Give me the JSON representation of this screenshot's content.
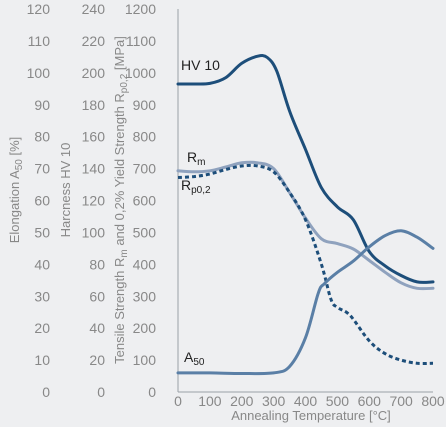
{
  "chart_data": {
    "type": "line",
    "x_title": "Annealing Temperature [°C]",
    "x_ticks": [
      0,
      100,
      200,
      300,
      400,
      500,
      600,
      700,
      800
    ],
    "xlim": [
      0,
      800
    ],
    "axes": [
      {
        "key": "elong",
        "title": "Elongation A50 [%]",
        "title_main": "Elongation A",
        "title_sub": "50",
        "title_tail": " [%]",
        "ticks": [
          0,
          10,
          20,
          30,
          40,
          50,
          60,
          70,
          80,
          90,
          100,
          110,
          120
        ],
        "range": [
          0,
          120
        ]
      },
      {
        "key": "hard",
        "title": "Harcness HV 10",
        "ticks": [
          0,
          20,
          40,
          60,
          80,
          100,
          120,
          140,
          160,
          180,
          200,
          220,
          240
        ],
        "range": [
          0,
          240
        ]
      },
      {
        "key": "strength",
        "title": "Tensile Strength Rm and 0,2% Yield Strength Rp0,2 [MPa]",
        "title_a": "Tensile Strength R",
        "title_a_sub": "m",
        "title_b": " and 0,2% Yield Strength R",
        "title_b_sub": "p0,2",
        "title_c": " [MPa]",
        "ticks": [
          0,
          100,
          200,
          300,
          400,
          500,
          600,
          700,
          800,
          900,
          1000,
          1100,
          1200
        ],
        "range": [
          0,
          1200
        ]
      }
    ],
    "series": [
      {
        "name": "HV 10",
        "label_main": "HV 10",
        "label_sub": "",
        "axis": "strength",
        "color": "#1d4e7a",
        "dashed": false,
        "x": [
          0,
          50,
          100,
          150,
          200,
          250,
          280,
          310,
          350,
          400,
          450,
          500,
          550,
          600,
          650,
          700,
          750,
          800
        ],
        "y": [
          965,
          965,
          967,
          985,
          1030,
          1052,
          1048,
          1005,
          880,
          760,
          640,
          580,
          540,
          440,
          395,
          365,
          345,
          345
        ]
      },
      {
        "name": "Rm",
        "label_main": "R",
        "label_sub": "m",
        "axis": "strength",
        "color": "#8fa2be",
        "dashed": false,
        "x": [
          0,
          50,
          100,
          150,
          200,
          250,
          300,
          350,
          400,
          450,
          500,
          550,
          600,
          650,
          700,
          750,
          800
        ],
        "y": [
          693,
          690,
          693,
          705,
          718,
          718,
          700,
          625,
          545,
          480,
          465,
          448,
          412,
          375,
          342,
          325,
          325
        ]
      },
      {
        "name": "Rp0,2",
        "label_main": "R",
        "label_sub": "p0,2",
        "axis": "strength",
        "color": "#1d4e7a",
        "dashed": true,
        "x": [
          0,
          50,
          100,
          150,
          200,
          250,
          300,
          350,
          400,
          450,
          480,
          500,
          540,
          600,
          650,
          700,
          750,
          800
        ],
        "y": [
          672,
          675,
          683,
          697,
          708,
          708,
          690,
          625,
          540,
          400,
          290,
          265,
          240,
          160,
          120,
          100,
          90,
          90
        ]
      },
      {
        "name": "A50",
        "label_main": "A",
        "label_sub": "50",
        "axis": "strength",
        "color": "#5a7fa6",
        "dashed": false,
        "x": [
          0,
          100,
          200,
          300,
          350,
          400,
          440,
          460,
          500,
          550,
          600,
          650,
          700,
          750,
          800
        ],
        "y": [
          60,
          60,
          58,
          60,
          80,
          170,
          310,
          340,
          375,
          410,
          455,
          490,
          505,
          485,
          450
        ]
      }
    ]
  }
}
